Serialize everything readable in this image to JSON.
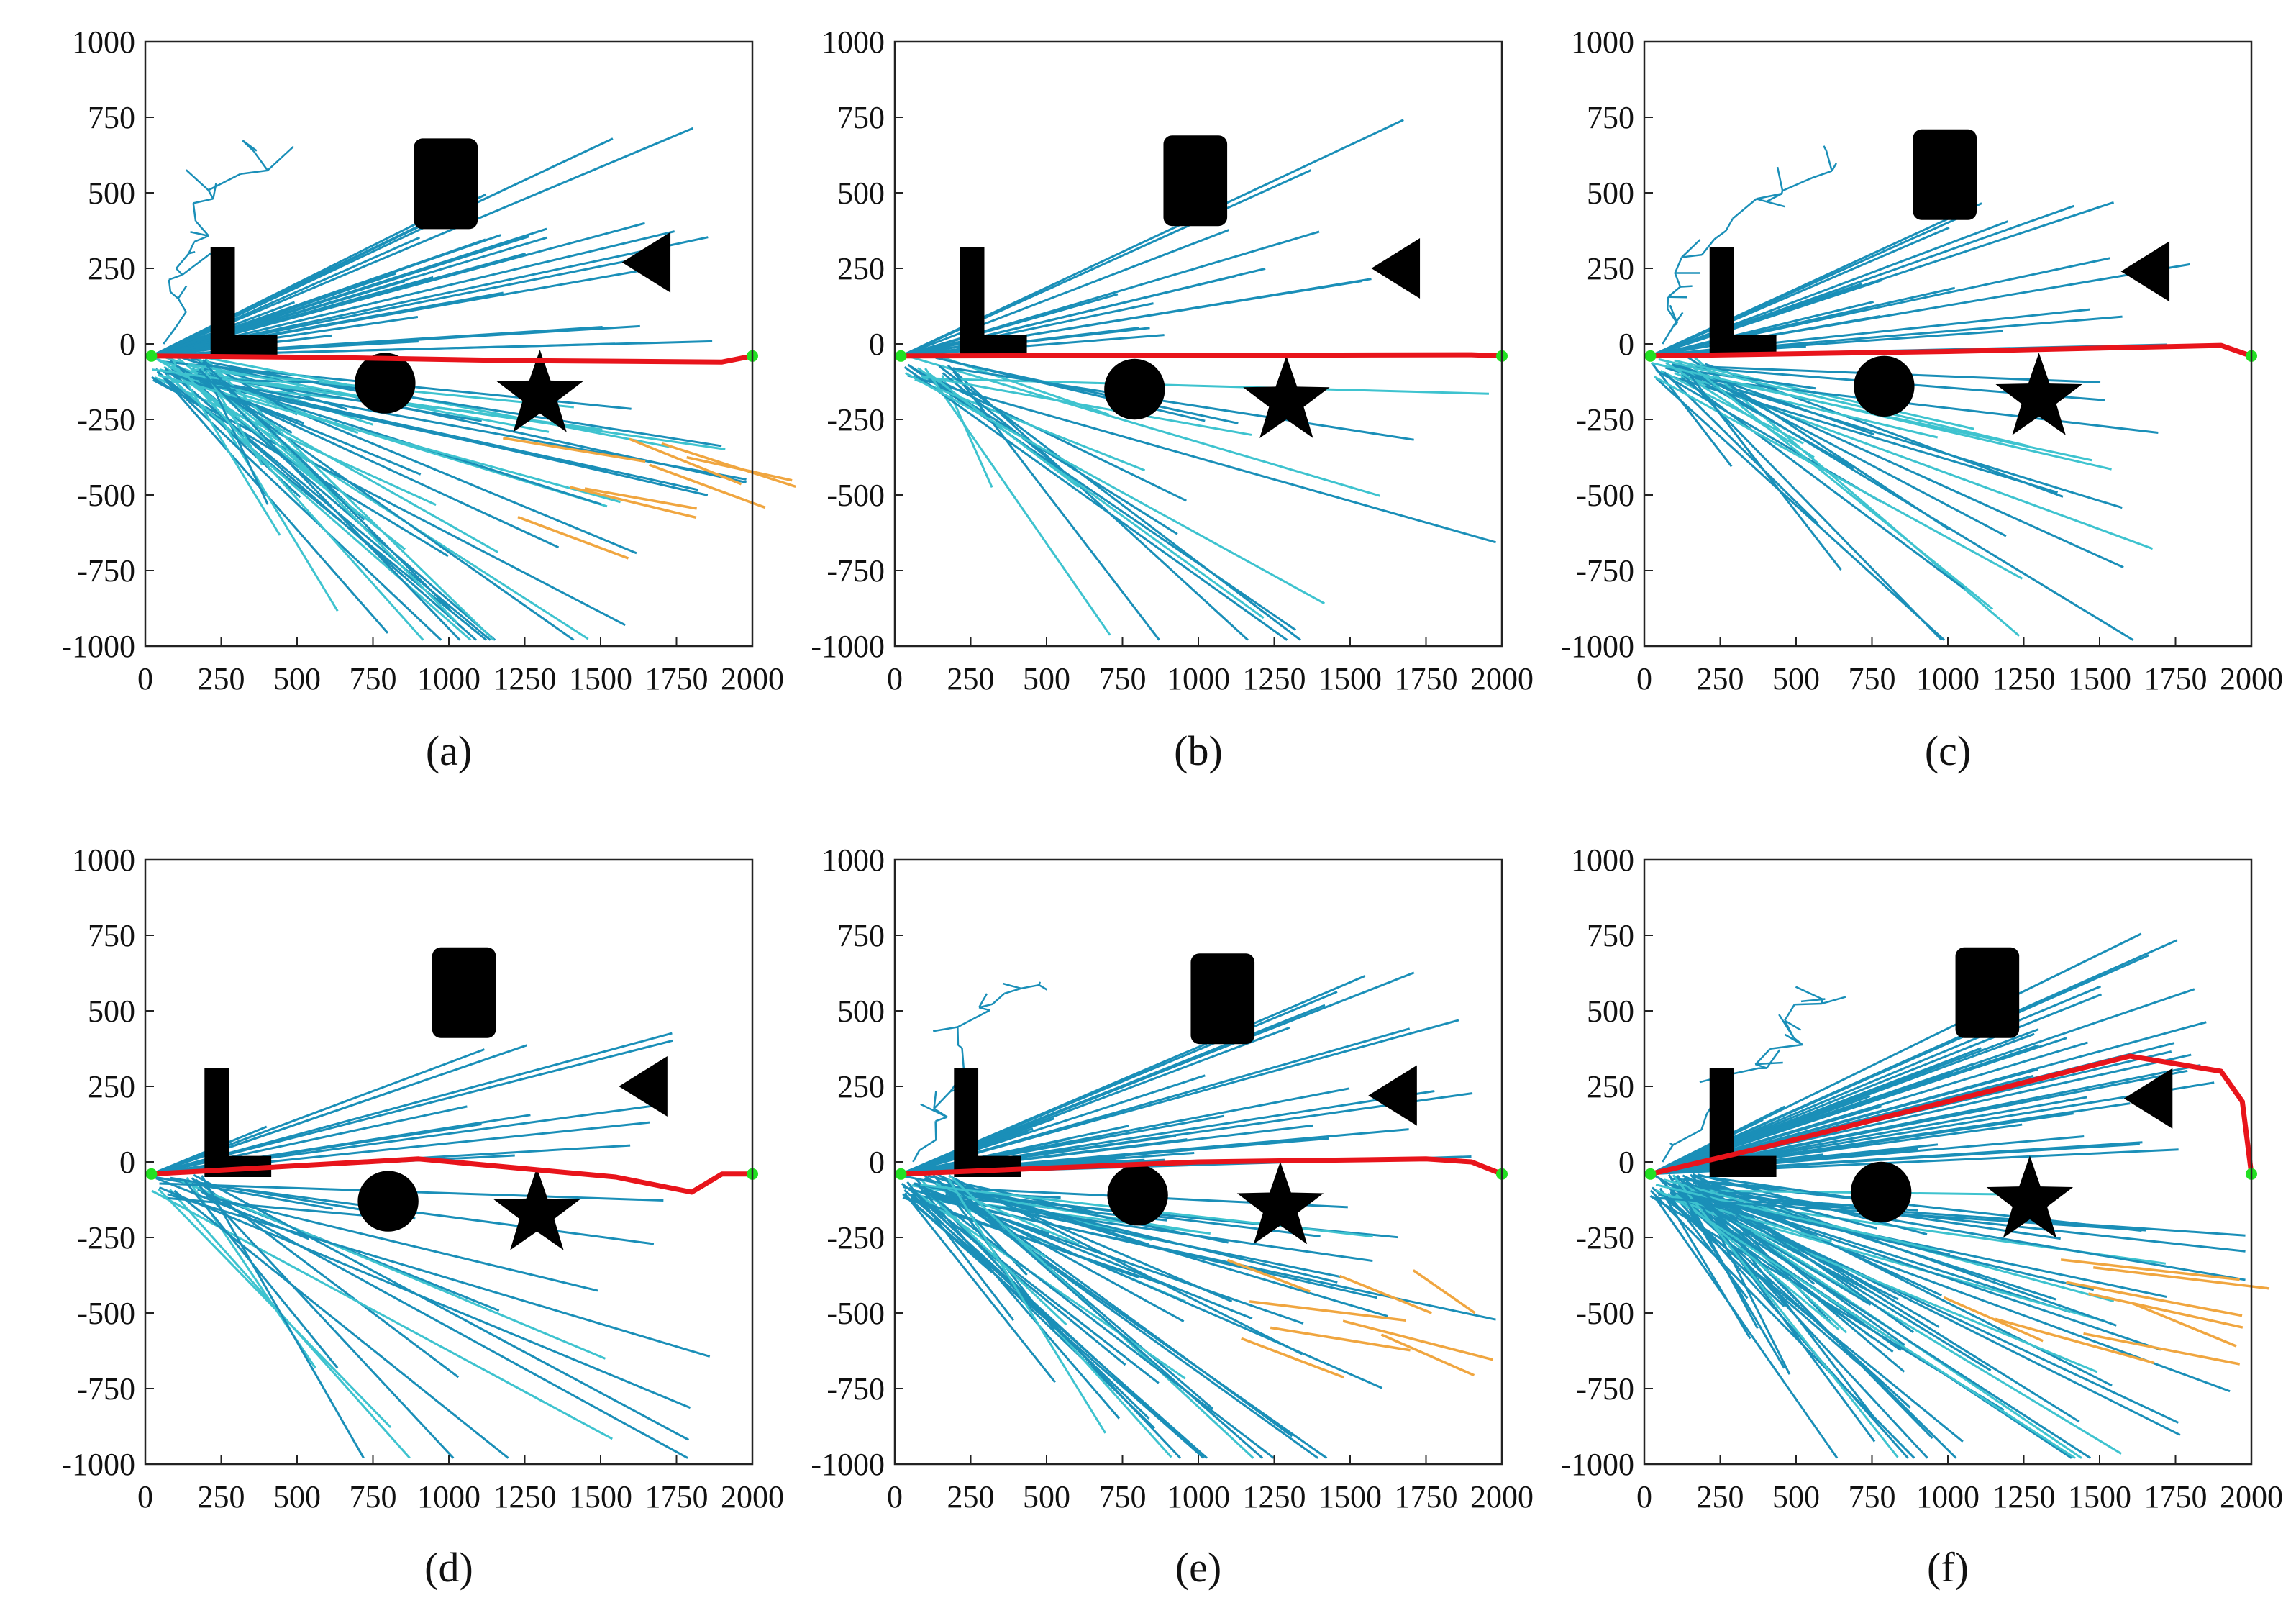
{
  "colors": {
    "tree": "#1a8fb8",
    "tree_light": "#3ec3cf",
    "tree_orange": "#f0a640",
    "path": "#e8141b",
    "endpoint": "#22e022",
    "obstacle": "#000000",
    "axes": "#222222"
  },
  "chart_data": [
    {
      "type": "line",
      "caption": "(a)",
      "x_ticks": [
        "0",
        "250",
        "500",
        "750",
        "1000",
        "1250",
        "1500",
        "1750",
        "2000"
      ],
      "y_ticks": [
        "1000",
        "750",
        "500",
        "250",
        "0",
        "-250",
        "-500",
        "-750",
        "-1000"
      ],
      "xlim": [
        0,
        2000
      ],
      "ylim": [
        -1000,
        1000
      ],
      "start": [
        20,
        -40
      ],
      "goal": [
        2000,
        -40
      ],
      "series": [
        {
          "name": "path",
          "x": [
            20,
            600,
            1200,
            1900,
            2000
          ],
          "y": [
            -40,
            -45,
            -55,
            -60,
            -40
          ]
        }
      ],
      "obstacles": [
        {
          "shape": "L",
          "x": 255,
          "y": 140
        },
        {
          "shape": "rect",
          "x": 990,
          "y": 530
        },
        {
          "shape": "triangle",
          "x": 1670,
          "y": 270
        },
        {
          "shape": "circle",
          "x": 790,
          "y": -130
        },
        {
          "shape": "star",
          "x": 1300,
          "y": -170
        }
      ],
      "explored_region": "dense",
      "orange_branches": true
    },
    {
      "type": "line",
      "caption": "(b)",
      "x_ticks": [
        "0",
        "250",
        "500",
        "750",
        "1000",
        "1250",
        "1500",
        "1750",
        "2000"
      ],
      "y_ticks": [
        "1000",
        "750",
        "500",
        "250",
        "0",
        "-250",
        "-500",
        "-750",
        "-1000"
      ],
      "xlim": [
        0,
        2000
      ],
      "ylim": [
        -1000,
        1000
      ],
      "start": [
        20,
        -40
      ],
      "goal": [
        2000,
        -40
      ],
      "series": [
        {
          "name": "path",
          "x": [
            20,
            1000,
            1900,
            2000
          ],
          "y": [
            -40,
            -38,
            -36,
            -40
          ]
        }
      ],
      "obstacles": [
        {
          "shape": "L",
          "x": 255,
          "y": 140
        },
        {
          "shape": "rect",
          "x": 990,
          "y": 540
        },
        {
          "shape": "triangle",
          "x": 1670,
          "y": 250
        },
        {
          "shape": "circle",
          "x": 790,
          "y": -150
        },
        {
          "shape": "star",
          "x": 1290,
          "y": -190
        }
      ],
      "explored_region": "sparse",
      "orange_branches": false
    },
    {
      "type": "line",
      "caption": "(c)",
      "x_ticks": [
        "0",
        "250",
        "500",
        "750",
        "1000",
        "1250",
        "1500",
        "1750",
        "2000"
      ],
      "y_ticks": [
        "1000",
        "750",
        "500",
        "250",
        "0",
        "-250",
        "-500",
        "-750",
        "-1000"
      ],
      "xlim": [
        0,
        2000
      ],
      "ylim": [
        -1000,
        1000
      ],
      "start": [
        20,
        -40
      ],
      "goal": [
        2000,
        -40
      ],
      "series": [
        {
          "name": "path",
          "x": [
            20,
            1000,
            1900,
            2000
          ],
          "y": [
            -40,
            -25,
            -5,
            -40
          ]
        }
      ],
      "obstacles": [
        {
          "shape": "L",
          "x": 255,
          "y": 140
        },
        {
          "shape": "rect",
          "x": 990,
          "y": 560
        },
        {
          "shape": "triangle",
          "x": 1670,
          "y": 240
        },
        {
          "shape": "circle",
          "x": 790,
          "y": -140
        },
        {
          "shape": "star",
          "x": 1300,
          "y": -180
        }
      ],
      "explored_region": "medium",
      "orange_branches": false
    },
    {
      "type": "line",
      "caption": "(d)",
      "x_ticks": [
        "0",
        "250",
        "500",
        "750",
        "1000",
        "1250",
        "1500",
        "1750",
        "2000"
      ],
      "y_ticks": [
        "1000",
        "750",
        "500",
        "250",
        "0",
        "-250",
        "-500",
        "-750",
        "-1000"
      ],
      "xlim": [
        0,
        2000
      ],
      "ylim": [
        -1000,
        1000
      ],
      "start": [
        20,
        -40
      ],
      "goal": [
        2000,
        -40
      ],
      "series": [
        {
          "name": "path",
          "x": [
            20,
            900,
            1550,
            1800,
            1900,
            2000
          ],
          "y": [
            -40,
            10,
            -50,
            -100,
            -40,
            -40
          ]
        }
      ],
      "obstacles": [
        {
          "shape": "L",
          "x": 235,
          "y": 130
        },
        {
          "shape": "rect",
          "x": 1050,
          "y": 560
        },
        {
          "shape": "triangle",
          "x": 1660,
          "y": 250
        },
        {
          "shape": "circle",
          "x": 800,
          "y": -130
        },
        {
          "shape": "star",
          "x": 1290,
          "y": -170
        }
      ],
      "explored_region": "sparse",
      "orange_branches": false
    },
    {
      "type": "line",
      "caption": "(e)",
      "x_ticks": [
        "0",
        "250",
        "500",
        "750",
        "1000",
        "1250",
        "1500",
        "1750",
        "2000"
      ],
      "y_ticks": [
        "1000",
        "750",
        "500",
        "250",
        "0",
        "-250",
        "-500",
        "-750",
        "-1000"
      ],
      "xlim": [
        0,
        2000
      ],
      "ylim": [
        -1000,
        1000
      ],
      "start": [
        20,
        -40
      ],
      "goal": [
        2000,
        -40
      ],
      "series": [
        {
          "name": "path",
          "x": [
            20,
            1000,
            1750,
            1900,
            2000
          ],
          "y": [
            -40,
            0,
            10,
            0,
            -40
          ]
        }
      ],
      "obstacles": [
        {
          "shape": "L",
          "x": 235,
          "y": 130
        },
        {
          "shape": "rect",
          "x": 1080,
          "y": 540
        },
        {
          "shape": "triangle",
          "x": 1660,
          "y": 220
        },
        {
          "shape": "circle",
          "x": 800,
          "y": -110
        },
        {
          "shape": "star",
          "x": 1270,
          "y": -150
        }
      ],
      "explored_region": "dense",
      "orange_branches": true
    },
    {
      "type": "line",
      "caption": "(f)",
      "x_ticks": [
        "0",
        "250",
        "500",
        "750",
        "1000",
        "1250",
        "1500",
        "1750",
        "2000"
      ],
      "y_ticks": [
        "1000",
        "750",
        "500",
        "250",
        "0",
        "-250",
        "-500",
        "-750",
        "-1000"
      ],
      "xlim": [
        0,
        2000
      ],
      "ylim": [
        -1000,
        1000
      ],
      "start": [
        20,
        -40
      ],
      "goal": [
        2000,
        -40
      ],
      "series": [
        {
          "name": "path",
          "x": [
            20,
            400,
            1000,
            1600,
            1900,
            1970,
            2000
          ],
          "y": [
            -40,
            50,
            200,
            350,
            300,
            200,
            -40
          ]
        }
      ],
      "obstacles": [
        {
          "shape": "L",
          "x": 255,
          "y": 130
        },
        {
          "shape": "rect",
          "x": 1130,
          "y": 560
        },
        {
          "shape": "triangle",
          "x": 1680,
          "y": 210
        },
        {
          "shape": "circle",
          "x": 780,
          "y": -100
        },
        {
          "shape": "star",
          "x": 1270,
          "y": -130
        }
      ],
      "explored_region": "very_dense",
      "orange_branches": true
    }
  ]
}
